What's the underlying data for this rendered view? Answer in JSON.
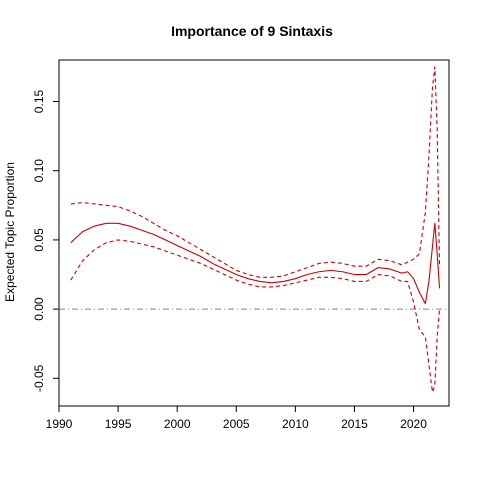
{
  "chart_data": {
    "type": "line",
    "title": "Importance of 9 Sintaxis",
    "xlabel": "",
    "ylabel": "Expected Topic Proportion",
    "xlim": [
      1990,
      2023
    ],
    "ylim": [
      -0.07,
      0.18
    ],
    "x_ticks": [
      1990,
      1995,
      2000,
      2005,
      2010,
      2015,
      2020
    ],
    "y_ticks": [
      -0.05,
      0.0,
      0.05,
      0.1,
      0.15
    ],
    "y_tick_labels": [
      "-0.05",
      "0.00",
      "0.05",
      "0.10",
      "0.15"
    ],
    "x_tick_labels": [
      "1990",
      "1995",
      "2000",
      "2005",
      "2010",
      "2015",
      "2020"
    ],
    "reference_line": {
      "y": 0,
      "style": "dash-dot",
      "color": "#888888"
    },
    "series_color": "#cc0000",
    "grid": false,
    "legend": "none",
    "x": [
      1991,
      1992,
      1993,
      1994,
      1995,
      1996,
      1997,
      1998,
      1999,
      2000,
      2001,
      2002,
      2003,
      2004,
      2005,
      2006,
      2007,
      2008,
      2009,
      2010,
      2011,
      2012,
      2013,
      2014,
      2015,
      2016,
      2017,
      2018,
      2019,
      2019.5,
      2020,
      2020.5,
      2021,
      2021.3,
      2021.6,
      2021.8,
      2022,
      2022.2
    ],
    "series": [
      {
        "role": "estimate",
        "style": "solid",
        "values": [
          0.048,
          0.056,
          0.06,
          0.062,
          0.062,
          0.06,
          0.057,
          0.054,
          0.05,
          0.046,
          0.042,
          0.038,
          0.033,
          0.029,
          0.025,
          0.022,
          0.02,
          0.019,
          0.02,
          0.022,
          0.025,
          0.027,
          0.028,
          0.027,
          0.025,
          0.025,
          0.03,
          0.029,
          0.026,
          0.027,
          0.022,
          0.012,
          0.004,
          0.02,
          0.045,
          0.062,
          0.04,
          0.015
        ]
      },
      {
        "role": "upper bound",
        "style": "dashed",
        "values": [
          0.076,
          0.077,
          0.076,
          0.075,
          0.074,
          0.071,
          0.067,
          0.062,
          0.057,
          0.053,
          0.048,
          0.043,
          0.038,
          0.033,
          0.028,
          0.025,
          0.023,
          0.023,
          0.024,
          0.027,
          0.03,
          0.033,
          0.034,
          0.033,
          0.031,
          0.031,
          0.036,
          0.035,
          0.032,
          0.034,
          0.036,
          0.04,
          0.07,
          0.11,
          0.16,
          0.175,
          0.13,
          0.03
        ]
      },
      {
        "role": "lower bound",
        "style": "dashed",
        "values": [
          0.021,
          0.035,
          0.043,
          0.048,
          0.05,
          0.049,
          0.047,
          0.045,
          0.042,
          0.039,
          0.036,
          0.033,
          0.029,
          0.025,
          0.021,
          0.018,
          0.016,
          0.016,
          0.017,
          0.019,
          0.021,
          0.023,
          0.023,
          0.022,
          0.02,
          0.02,
          0.025,
          0.024,
          0.02,
          0.02,
          0.005,
          -0.015,
          -0.02,
          -0.04,
          -0.06,
          -0.055,
          -0.02,
          0.0
        ]
      }
    ]
  }
}
